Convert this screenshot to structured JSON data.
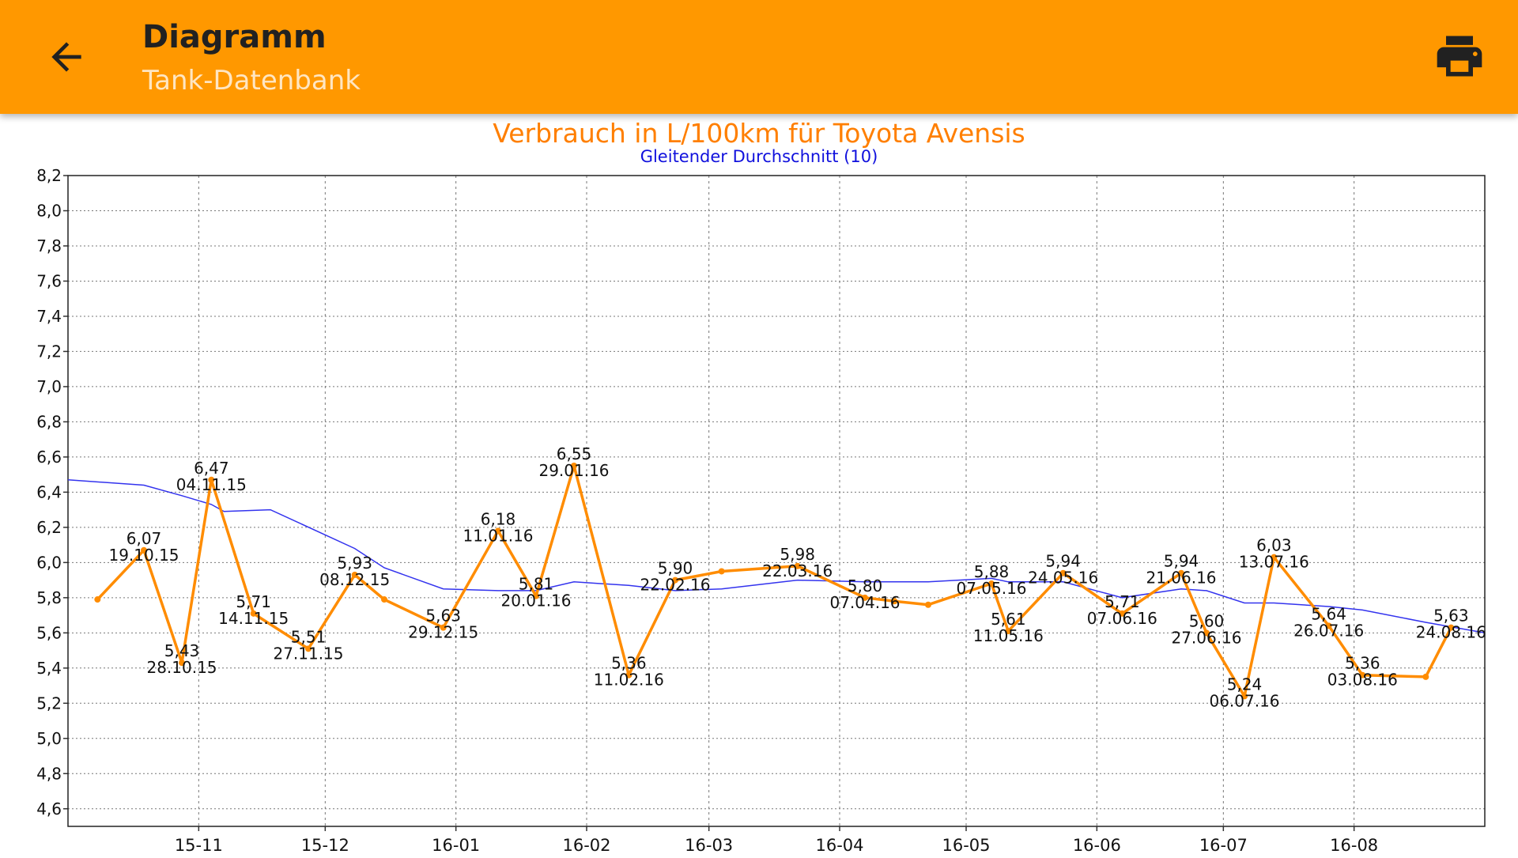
{
  "appbar": {
    "title": "Diagramm",
    "subtitle": "Tank-Datenbank",
    "back_icon": "arrow-back-icon",
    "print_icon": "printer-icon",
    "color": "#FF9800"
  },
  "chart_data": {
    "type": "line",
    "title": "Verbrauch in L/100km für Toyota Avensis",
    "subtitle": "Gleitender Durchschnitt (10)",
    "xlabel": "",
    "ylabel": "",
    "ylim": [
      4.5,
      8.2
    ],
    "yticks": [
      "8,2",
      "8,0",
      "7,8",
      "7,6",
      "7,4",
      "7,2",
      "7,0",
      "6,8",
      "6,6",
      "6,4",
      "6,2",
      "6,0",
      "5,8",
      "5,6",
      "5,4",
      "5,2",
      "5,0",
      "4,8",
      "4,6"
    ],
    "xlim": [
      "2015-10-01",
      "2016-09-01"
    ],
    "xticks": [
      {
        "label": "15-11",
        "date": "2015-11-01"
      },
      {
        "label": "15-12",
        "date": "2015-12-01"
      },
      {
        "label": "16-01",
        "date": "2016-01-01"
      },
      {
        "label": "16-02",
        "date": "2016-02-01"
      },
      {
        "label": "16-03",
        "date": "2016-03-01"
      },
      {
        "label": "16-04",
        "date": "2016-04-01"
      },
      {
        "label": "16-05",
        "date": "2016-05-01"
      },
      {
        "label": "16-06",
        "date": "2016-06-01"
      },
      {
        "label": "16-07",
        "date": "2016-07-01"
      },
      {
        "label": "16-08",
        "date": "2016-08-01"
      }
    ],
    "grid": true,
    "colors": {
      "consumption": "#FF8C00",
      "average": "#3333EE",
      "title": "#FF7F00",
      "subtitle": "#1010DD"
    },
    "series": [
      {
        "points": [
          {
            "date": "2015-10-08",
            "y": 5.79
          },
          {
            "date": "2015-10-19",
            "y": 6.07,
            "value_label": "6,07",
            "date_label": "19.10.15"
          },
          {
            "date": "2015-10-28",
            "y": 5.43,
            "value_label": "5,43",
            "date_label": "28.10.15"
          },
          {
            "date": "2015-11-04",
            "y": 6.47,
            "value_label": "6,47",
            "date_label": "04.11.15"
          },
          {
            "date": "2015-11-14",
            "y": 5.71,
            "value_label": "5,71",
            "date_label": "14.11.15"
          },
          {
            "date": "2015-11-27",
            "y": 5.51,
            "value_label": "5,51",
            "date_label": "27.11.15"
          },
          {
            "date": "2015-12-08",
            "y": 5.93,
            "value_label": "5,93",
            "date_label": "08.12.15"
          },
          {
            "date": "2015-12-15",
            "y": 5.79
          },
          {
            "date": "2015-12-29",
            "y": 5.63,
            "value_label": "5,63",
            "date_label": "29.12.15"
          },
          {
            "date": "2016-01-11",
            "y": 6.18,
            "value_label": "6,18",
            "date_label": "11.01.16"
          },
          {
            "date": "2016-01-20",
            "y": 5.81,
            "value_label": "5,81",
            "date_label": "20.01.16"
          },
          {
            "date": "2016-01-29",
            "y": 6.55,
            "value_label": "6,55",
            "date_label": "29.01.16"
          },
          {
            "date": "2016-02-11",
            "y": 5.36,
            "value_label": "5,36",
            "date_label": "11.02.16"
          },
          {
            "date": "2016-02-22",
            "y": 5.9,
            "value_label": "5,90",
            "date_label": "22.02.16"
          },
          {
            "date": "2016-03-04",
            "y": 5.95
          },
          {
            "date": "2016-03-22",
            "y": 5.98,
            "value_label": "5,98",
            "date_label": "22.03.16"
          },
          {
            "date": "2016-04-07",
            "y": 5.8,
            "value_label": "5,80",
            "date_label": "07.04.16"
          },
          {
            "date": "2016-04-14",
            "y": 5.78
          },
          {
            "date": "2016-04-22",
            "y": 5.76
          },
          {
            "date": "2016-05-07",
            "y": 5.88,
            "value_label": "5,88",
            "date_label": "07.05.16"
          },
          {
            "date": "2016-05-11",
            "y": 5.61,
            "value_label": "5,61",
            "date_label": "11.05.16"
          },
          {
            "date": "2016-05-24",
            "y": 5.94,
            "value_label": "5,94",
            "date_label": "24.05.16"
          },
          {
            "date": "2016-06-07",
            "y": 5.71,
            "value_label": "5,71",
            "date_label": "07.06.16"
          },
          {
            "date": "2016-06-21",
            "y": 5.94,
            "value_label": "5,94",
            "date_label": "21.06.16"
          },
          {
            "date": "2016-06-27",
            "y": 5.6,
            "value_label": "5,60",
            "date_label": "27.06.16"
          },
          {
            "date": "2016-07-06",
            "y": 5.24,
            "value_label": "5,24",
            "date_label": "06.07.16"
          },
          {
            "date": "2016-07-13",
            "y": 6.03,
            "value_label": "6,03",
            "date_label": "13.07.16"
          },
          {
            "date": "2016-07-26",
            "y": 5.64,
            "value_label": "5,64",
            "date_label": "26.07.16"
          },
          {
            "date": "2016-08-03",
            "y": 5.36,
            "value_label": "5,36",
            "date_label": "03.08.16"
          },
          {
            "date": "2016-08-18",
            "y": 5.35
          },
          {
            "date": "2016-08-24",
            "y": 5.63,
            "value_label": "5,63",
            "date_label": "24.08.16"
          }
        ]
      },
      {
        "points": [
          {
            "date": "2015-10-01",
            "y": 6.47
          },
          {
            "date": "2015-10-19",
            "y": 6.44
          },
          {
            "date": "2015-10-28",
            "y": 6.38
          },
          {
            "date": "2015-11-04",
            "y": 6.33
          },
          {
            "date": "2015-11-07",
            "y": 6.29
          },
          {
            "date": "2015-11-18",
            "y": 6.3
          },
          {
            "date": "2015-12-08",
            "y": 6.08
          },
          {
            "date": "2015-12-15",
            "y": 5.97
          },
          {
            "date": "2015-12-29",
            "y": 5.85
          },
          {
            "date": "2016-01-11",
            "y": 5.84
          },
          {
            "date": "2016-01-20",
            "y": 5.84
          },
          {
            "date": "2016-01-29",
            "y": 5.89
          },
          {
            "date": "2016-02-11",
            "y": 5.87
          },
          {
            "date": "2016-02-22",
            "y": 5.84
          },
          {
            "date": "2016-03-04",
            "y": 5.85
          },
          {
            "date": "2016-03-22",
            "y": 5.9
          },
          {
            "date": "2016-04-07",
            "y": 5.89
          },
          {
            "date": "2016-04-14",
            "y": 5.89
          },
          {
            "date": "2016-04-22",
            "y": 5.89
          },
          {
            "date": "2016-05-07",
            "y": 5.91
          },
          {
            "date": "2016-05-11",
            "y": 5.89
          },
          {
            "date": "2016-05-24",
            "y": 5.89
          },
          {
            "date": "2016-06-07",
            "y": 5.8
          },
          {
            "date": "2016-06-21",
            "y": 5.85
          },
          {
            "date": "2016-06-27",
            "y": 5.84
          },
          {
            "date": "2016-07-06",
            "y": 5.77
          },
          {
            "date": "2016-07-13",
            "y": 5.77
          },
          {
            "date": "2016-07-26",
            "y": 5.75
          },
          {
            "date": "2016-08-03",
            "y": 5.73
          },
          {
            "date": "2016-08-18",
            "y": 5.66
          },
          {
            "date": "2016-09-01",
            "y": 5.6
          }
        ]
      }
    ]
  }
}
